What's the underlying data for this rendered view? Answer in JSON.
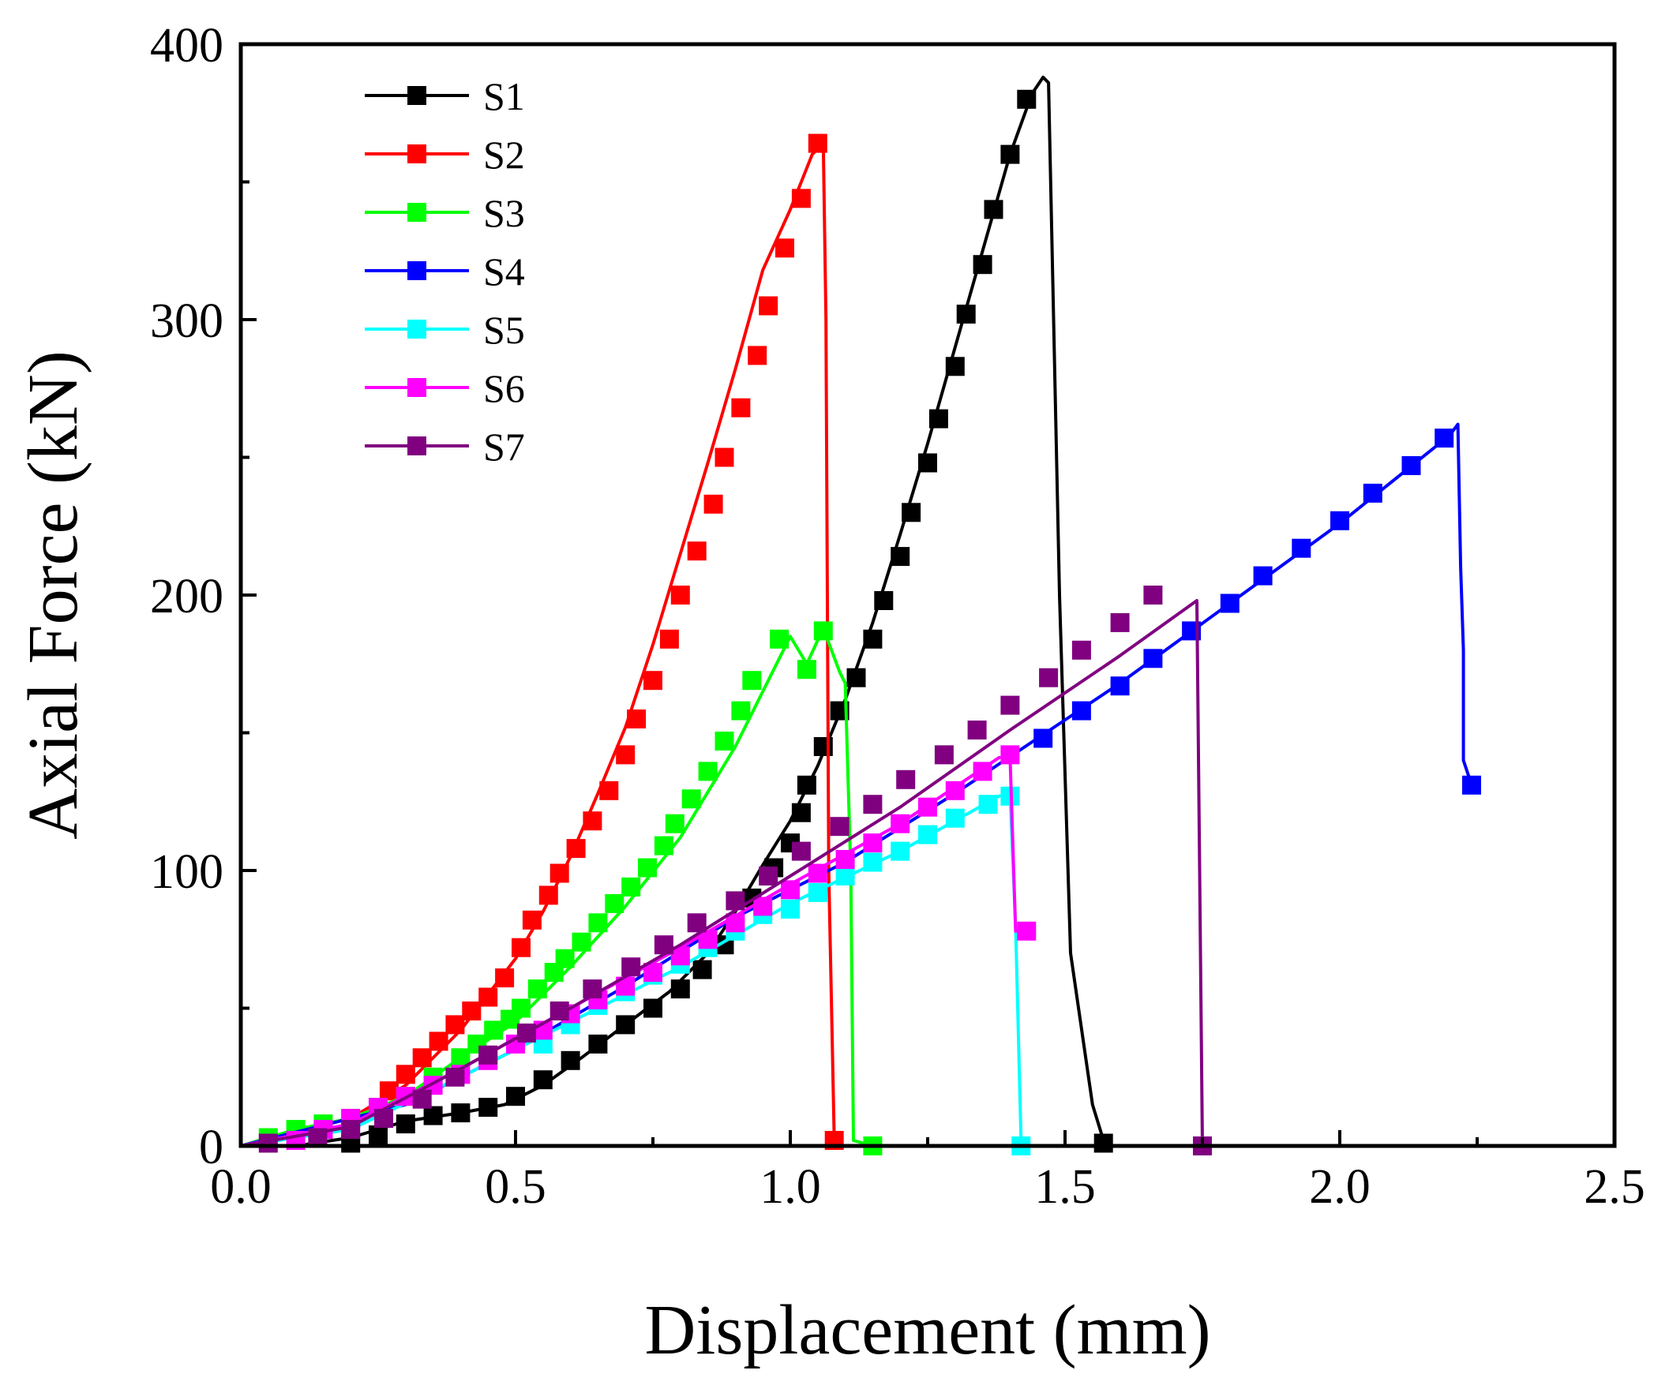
{
  "chart_data": {
    "type": "line",
    "title": "",
    "xlabel": "Displacement (mm)",
    "ylabel": "Axial Force (kN)",
    "xlim": [
      0,
      2.5
    ],
    "ylim": [
      0,
      400
    ],
    "x_ticks": [
      0,
      0.5,
      1.0,
      1.5,
      2.0,
      2.5
    ],
    "x_tick_labels": [
      "0.0",
      "0.5",
      "1.0",
      "1.5",
      "2.0",
      "2.5"
    ],
    "y_ticks": [
      0,
      100,
      200,
      300,
      400
    ],
    "y_tick_labels": [
      "0",
      "100",
      "200",
      "300",
      "400"
    ],
    "y_minor_ticks": [
      50,
      150,
      250,
      350
    ],
    "grid": false,
    "legend_position": "top-left",
    "series": [
      {
        "name": "S1",
        "color": "#000000",
        "line": [
          [
            0,
            0
          ],
          [
            0.1,
            0
          ],
          [
            0.2,
            3
          ],
          [
            0.3,
            9
          ],
          [
            0.4,
            12
          ],
          [
            0.48,
            15
          ],
          [
            0.55,
            22
          ],
          [
            0.62,
            32
          ],
          [
            0.7,
            44
          ],
          [
            0.78,
            56
          ],
          [
            0.85,
            70
          ],
          [
            0.9,
            85
          ],
          [
            0.95,
            102
          ],
          [
            1.0,
            118
          ],
          [
            1.05,
            138
          ],
          [
            1.1,
            162
          ],
          [
            1.15,
            190
          ],
          [
            1.2,
            222
          ],
          [
            1.25,
            255
          ],
          [
            1.3,
            290
          ],
          [
            1.35,
            325
          ],
          [
            1.4,
            360
          ],
          [
            1.44,
            382
          ],
          [
            1.46,
            388
          ],
          [
            1.47,
            386
          ],
          [
            1.49,
            200
          ],
          [
            1.51,
            70
          ],
          [
            1.55,
            15
          ],
          [
            1.57,
            2
          ]
        ],
        "markers": [
          [
            0.2,
            1
          ],
          [
            0.25,
            4
          ],
          [
            0.3,
            8
          ],
          [
            0.35,
            11
          ],
          [
            0.4,
            12
          ],
          [
            0.45,
            14
          ],
          [
            0.5,
            18
          ],
          [
            0.55,
            24
          ],
          [
            0.6,
            31
          ],
          [
            0.65,
            37
          ],
          [
            0.7,
            44
          ],
          [
            0.75,
            50
          ],
          [
            0.8,
            57
          ],
          [
            0.84,
            64
          ],
          [
            0.88,
            73
          ],
          [
            0.93,
            90
          ],
          [
            0.97,
            101
          ],
          [
            1.0,
            110
          ],
          [
            1.02,
            121
          ],
          [
            1.03,
            131
          ],
          [
            1.06,
            145
          ],
          [
            1.09,
            158
          ],
          [
            1.12,
            170
          ],
          [
            1.15,
            184
          ],
          [
            1.17,
            198
          ],
          [
            1.2,
            214
          ],
          [
            1.22,
            230
          ],
          [
            1.25,
            248
          ],
          [
            1.27,
            264
          ],
          [
            1.3,
            283
          ],
          [
            1.32,
            302
          ],
          [
            1.35,
            320
          ],
          [
            1.37,
            340
          ],
          [
            1.4,
            360
          ],
          [
            1.43,
            380
          ],
          [
            1.57,
            1
          ]
        ]
      },
      {
        "name": "S2",
        "color": "#ff0000",
        "line": [
          [
            0,
            0
          ],
          [
            0.1,
            5
          ],
          [
            0.2,
            10
          ],
          [
            0.3,
            22
          ],
          [
            0.4,
            42
          ],
          [
            0.5,
            68
          ],
          [
            0.55,
            85
          ],
          [
            0.6,
            105
          ],
          [
            0.65,
            128
          ],
          [
            0.7,
            152
          ],
          [
            0.75,
            182
          ],
          [
            0.8,
            215
          ],
          [
            0.85,
            248
          ],
          [
            0.9,
            282
          ],
          [
            0.95,
            318
          ],
          [
            1.0,
            340
          ],
          [
            1.04,
            360
          ],
          [
            1.06,
            364
          ],
          [
            1.065,
            300
          ],
          [
            1.07,
            100
          ],
          [
            1.08,
            2
          ]
        ],
        "markers": [
          [
            0.27,
            20
          ],
          [
            0.3,
            26
          ],
          [
            0.33,
            32
          ],
          [
            0.36,
            38
          ],
          [
            0.39,
            44
          ],
          [
            0.42,
            49
          ],
          [
            0.45,
            54
          ],
          [
            0.48,
            61
          ],
          [
            0.51,
            72
          ],
          [
            0.53,
            82
          ],
          [
            0.56,
            91
          ],
          [
            0.58,
            99
          ],
          [
            0.61,
            108
          ],
          [
            0.64,
            118
          ],
          [
            0.67,
            129
          ],
          [
            0.7,
            142
          ],
          [
            0.72,
            155
          ],
          [
            0.75,
            169
          ],
          [
            0.78,
            184
          ],
          [
            0.8,
            200
          ],
          [
            0.83,
            216
          ],
          [
            0.86,
            233
          ],
          [
            0.88,
            250
          ],
          [
            0.91,
            268
          ],
          [
            0.94,
            287
          ],
          [
            0.96,
            305
          ],
          [
            0.99,
            326
          ],
          [
            1.02,
            344
          ],
          [
            1.05,
            364
          ],
          [
            1.08,
            2
          ]
        ]
      },
      {
        "name": "S3",
        "color": "#00ff00",
        "line": [
          [
            0,
            0
          ],
          [
            0.1,
            6
          ],
          [
            0.2,
            10
          ],
          [
            0.3,
            18
          ],
          [
            0.4,
            32
          ],
          [
            0.5,
            45
          ],
          [
            0.6,
            65
          ],
          [
            0.7,
            87
          ],
          [
            0.8,
            112
          ],
          [
            0.9,
            145
          ],
          [
            0.95,
            165
          ],
          [
            1.0,
            185
          ],
          [
            1.03,
            175
          ],
          [
            1.06,
            188
          ],
          [
            1.09,
            172
          ],
          [
            1.1,
            168
          ],
          [
            1.11,
            100
          ],
          [
            1.115,
            2
          ],
          [
            1.15,
            0
          ]
        ],
        "markers": [
          [
            0.05,
            3
          ],
          [
            0.1,
            6
          ],
          [
            0.15,
            8
          ],
          [
            0.2,
            10
          ],
          [
            0.25,
            14
          ],
          [
            0.3,
            18
          ],
          [
            0.35,
            25
          ],
          [
            0.4,
            32
          ],
          [
            0.43,
            37
          ],
          [
            0.46,
            42
          ],
          [
            0.49,
            46
          ],
          [
            0.51,
            50
          ],
          [
            0.54,
            57
          ],
          [
            0.57,
            63
          ],
          [
            0.59,
            68
          ],
          [
            0.62,
            74
          ],
          [
            0.65,
            81
          ],
          [
            0.68,
            88
          ],
          [
            0.71,
            94
          ],
          [
            0.74,
            101
          ],
          [
            0.77,
            109
          ],
          [
            0.79,
            117
          ],
          [
            0.82,
            126
          ],
          [
            0.85,
            136
          ],
          [
            0.88,
            147
          ],
          [
            0.91,
            158
          ],
          [
            0.93,
            169
          ],
          [
            0.98,
            184
          ],
          [
            1.03,
            173
          ],
          [
            1.06,
            187
          ],
          [
            1.15,
            0
          ]
        ]
      },
      {
        "name": "S4",
        "color": "#0000ff",
        "line": [
          [
            0,
            0
          ],
          [
            0.3,
            15
          ],
          [
            0.5,
            35
          ],
          [
            0.7,
            58
          ],
          [
            0.9,
            83
          ],
          [
            1.1,
            103
          ],
          [
            1.3,
            128
          ],
          [
            1.45,
            148
          ],
          [
            1.6,
            168
          ],
          [
            1.8,
            197
          ],
          [
            2.0,
            226
          ],
          [
            2.2,
            258
          ],
          [
            2.215,
            262
          ],
          [
            2.22,
            210
          ],
          [
            2.225,
            180
          ],
          [
            2.225,
            140
          ],
          [
            2.24,
            131
          ]
        ],
        "markers": [
          [
            1.46,
            148
          ],
          [
            1.53,
            158
          ],
          [
            1.6,
            167
          ],
          [
            1.66,
            177
          ],
          [
            1.73,
            187
          ],
          [
            1.8,
            197
          ],
          [
            1.86,
            207
          ],
          [
            1.93,
            217
          ],
          [
            2.0,
            227
          ],
          [
            2.06,
            237
          ],
          [
            2.13,
            247
          ],
          [
            2.19,
            257
          ],
          [
            2.24,
            131
          ]
        ]
      },
      {
        "name": "S5",
        "color": "#00ffff",
        "line": [
          [
            0,
            0
          ],
          [
            0.2,
            6
          ],
          [
            0.4,
            25
          ],
          [
            0.6,
            45
          ],
          [
            0.8,
            65
          ],
          [
            1.0,
            88
          ],
          [
            1.2,
            107
          ],
          [
            1.38,
            127
          ],
          [
            1.4,
            128
          ],
          [
            1.41,
            80
          ],
          [
            1.42,
            2
          ]
        ],
        "markers": [
          [
            0.55,
            37
          ],
          [
            0.6,
            44
          ],
          [
            0.65,
            51
          ],
          [
            0.7,
            56
          ],
          [
            0.75,
            62
          ],
          [
            0.8,
            66
          ],
          [
            0.85,
            72
          ],
          [
            0.9,
            78
          ],
          [
            0.95,
            84
          ],
          [
            1.0,
            86
          ],
          [
            1.05,
            92
          ],
          [
            1.1,
            98
          ],
          [
            1.15,
            103
          ],
          [
            1.2,
            107
          ],
          [
            1.25,
            113
          ],
          [
            1.3,
            119
          ],
          [
            1.36,
            124
          ],
          [
            1.4,
            127
          ],
          [
            1.42,
            0
          ]
        ]
      },
      {
        "name": "S6",
        "color": "#ff00ff",
        "line": [
          [
            0,
            0
          ],
          [
            0.2,
            8
          ],
          [
            0.4,
            28
          ],
          [
            0.6,
            50
          ],
          [
            0.8,
            72
          ],
          [
            1.0,
            95
          ],
          [
            1.2,
            117
          ],
          [
            1.38,
            141
          ],
          [
            1.4,
            141
          ],
          [
            1.41,
            78
          ],
          [
            1.42,
            78
          ]
        ],
        "markers": [
          [
            0.1,
            2
          ],
          [
            0.15,
            6
          ],
          [
            0.2,
            10
          ],
          [
            0.25,
            14
          ],
          [
            0.3,
            18
          ],
          [
            0.35,
            22
          ],
          [
            0.4,
            26
          ],
          [
            0.45,
            31
          ],
          [
            0.5,
            37
          ],
          [
            0.55,
            42
          ],
          [
            0.6,
            48
          ],
          [
            0.65,
            53
          ],
          [
            0.7,
            58
          ],
          [
            0.75,
            63
          ],
          [
            0.8,
            69
          ],
          [
            0.85,
            75
          ],
          [
            0.9,
            81
          ],
          [
            0.95,
            87
          ],
          [
            1.0,
            93
          ],
          [
            1.05,
            99
          ],
          [
            1.1,
            104
          ],
          [
            1.15,
            110
          ],
          [
            1.2,
            117
          ],
          [
            1.25,
            123
          ],
          [
            1.3,
            129
          ],
          [
            1.35,
            136
          ],
          [
            1.4,
            142
          ],
          [
            1.43,
            78
          ]
        ]
      },
      {
        "name": "S7",
        "color": "#800080",
        "line": [
          [
            0,
            0
          ],
          [
            0.2,
            7
          ],
          [
            0.4,
            28
          ],
          [
            0.6,
            50
          ],
          [
            0.8,
            73
          ],
          [
            1.0,
            98
          ],
          [
            1.2,
            123
          ],
          [
            1.4,
            151
          ],
          [
            1.6,
            178
          ],
          [
            1.74,
            198
          ],
          [
            1.745,
            100
          ],
          [
            1.75,
            0
          ]
        ],
        "markers": [
          [
            0.05,
            1
          ],
          [
            0.14,
            3
          ],
          [
            0.2,
            6
          ],
          [
            0.26,
            10
          ],
          [
            0.33,
            17
          ],
          [
            0.39,
            25
          ],
          [
            0.45,
            33
          ],
          [
            0.52,
            41
          ],
          [
            0.58,
            49
          ],
          [
            0.64,
            57
          ],
          [
            0.71,
            65
          ],
          [
            0.77,
            73
          ],
          [
            0.83,
            81
          ],
          [
            0.9,
            89
          ],
          [
            0.96,
            98
          ],
          [
            1.02,
            107
          ],
          [
            1.09,
            116
          ],
          [
            1.15,
            124
          ],
          [
            1.21,
            133
          ],
          [
            1.28,
            142
          ],
          [
            1.34,
            151
          ],
          [
            1.4,
            160
          ],
          [
            1.47,
            170
          ],
          [
            1.53,
            180
          ],
          [
            1.6,
            190
          ],
          [
            1.66,
            200
          ],
          [
            1.75,
            0
          ]
        ]
      }
    ]
  }
}
